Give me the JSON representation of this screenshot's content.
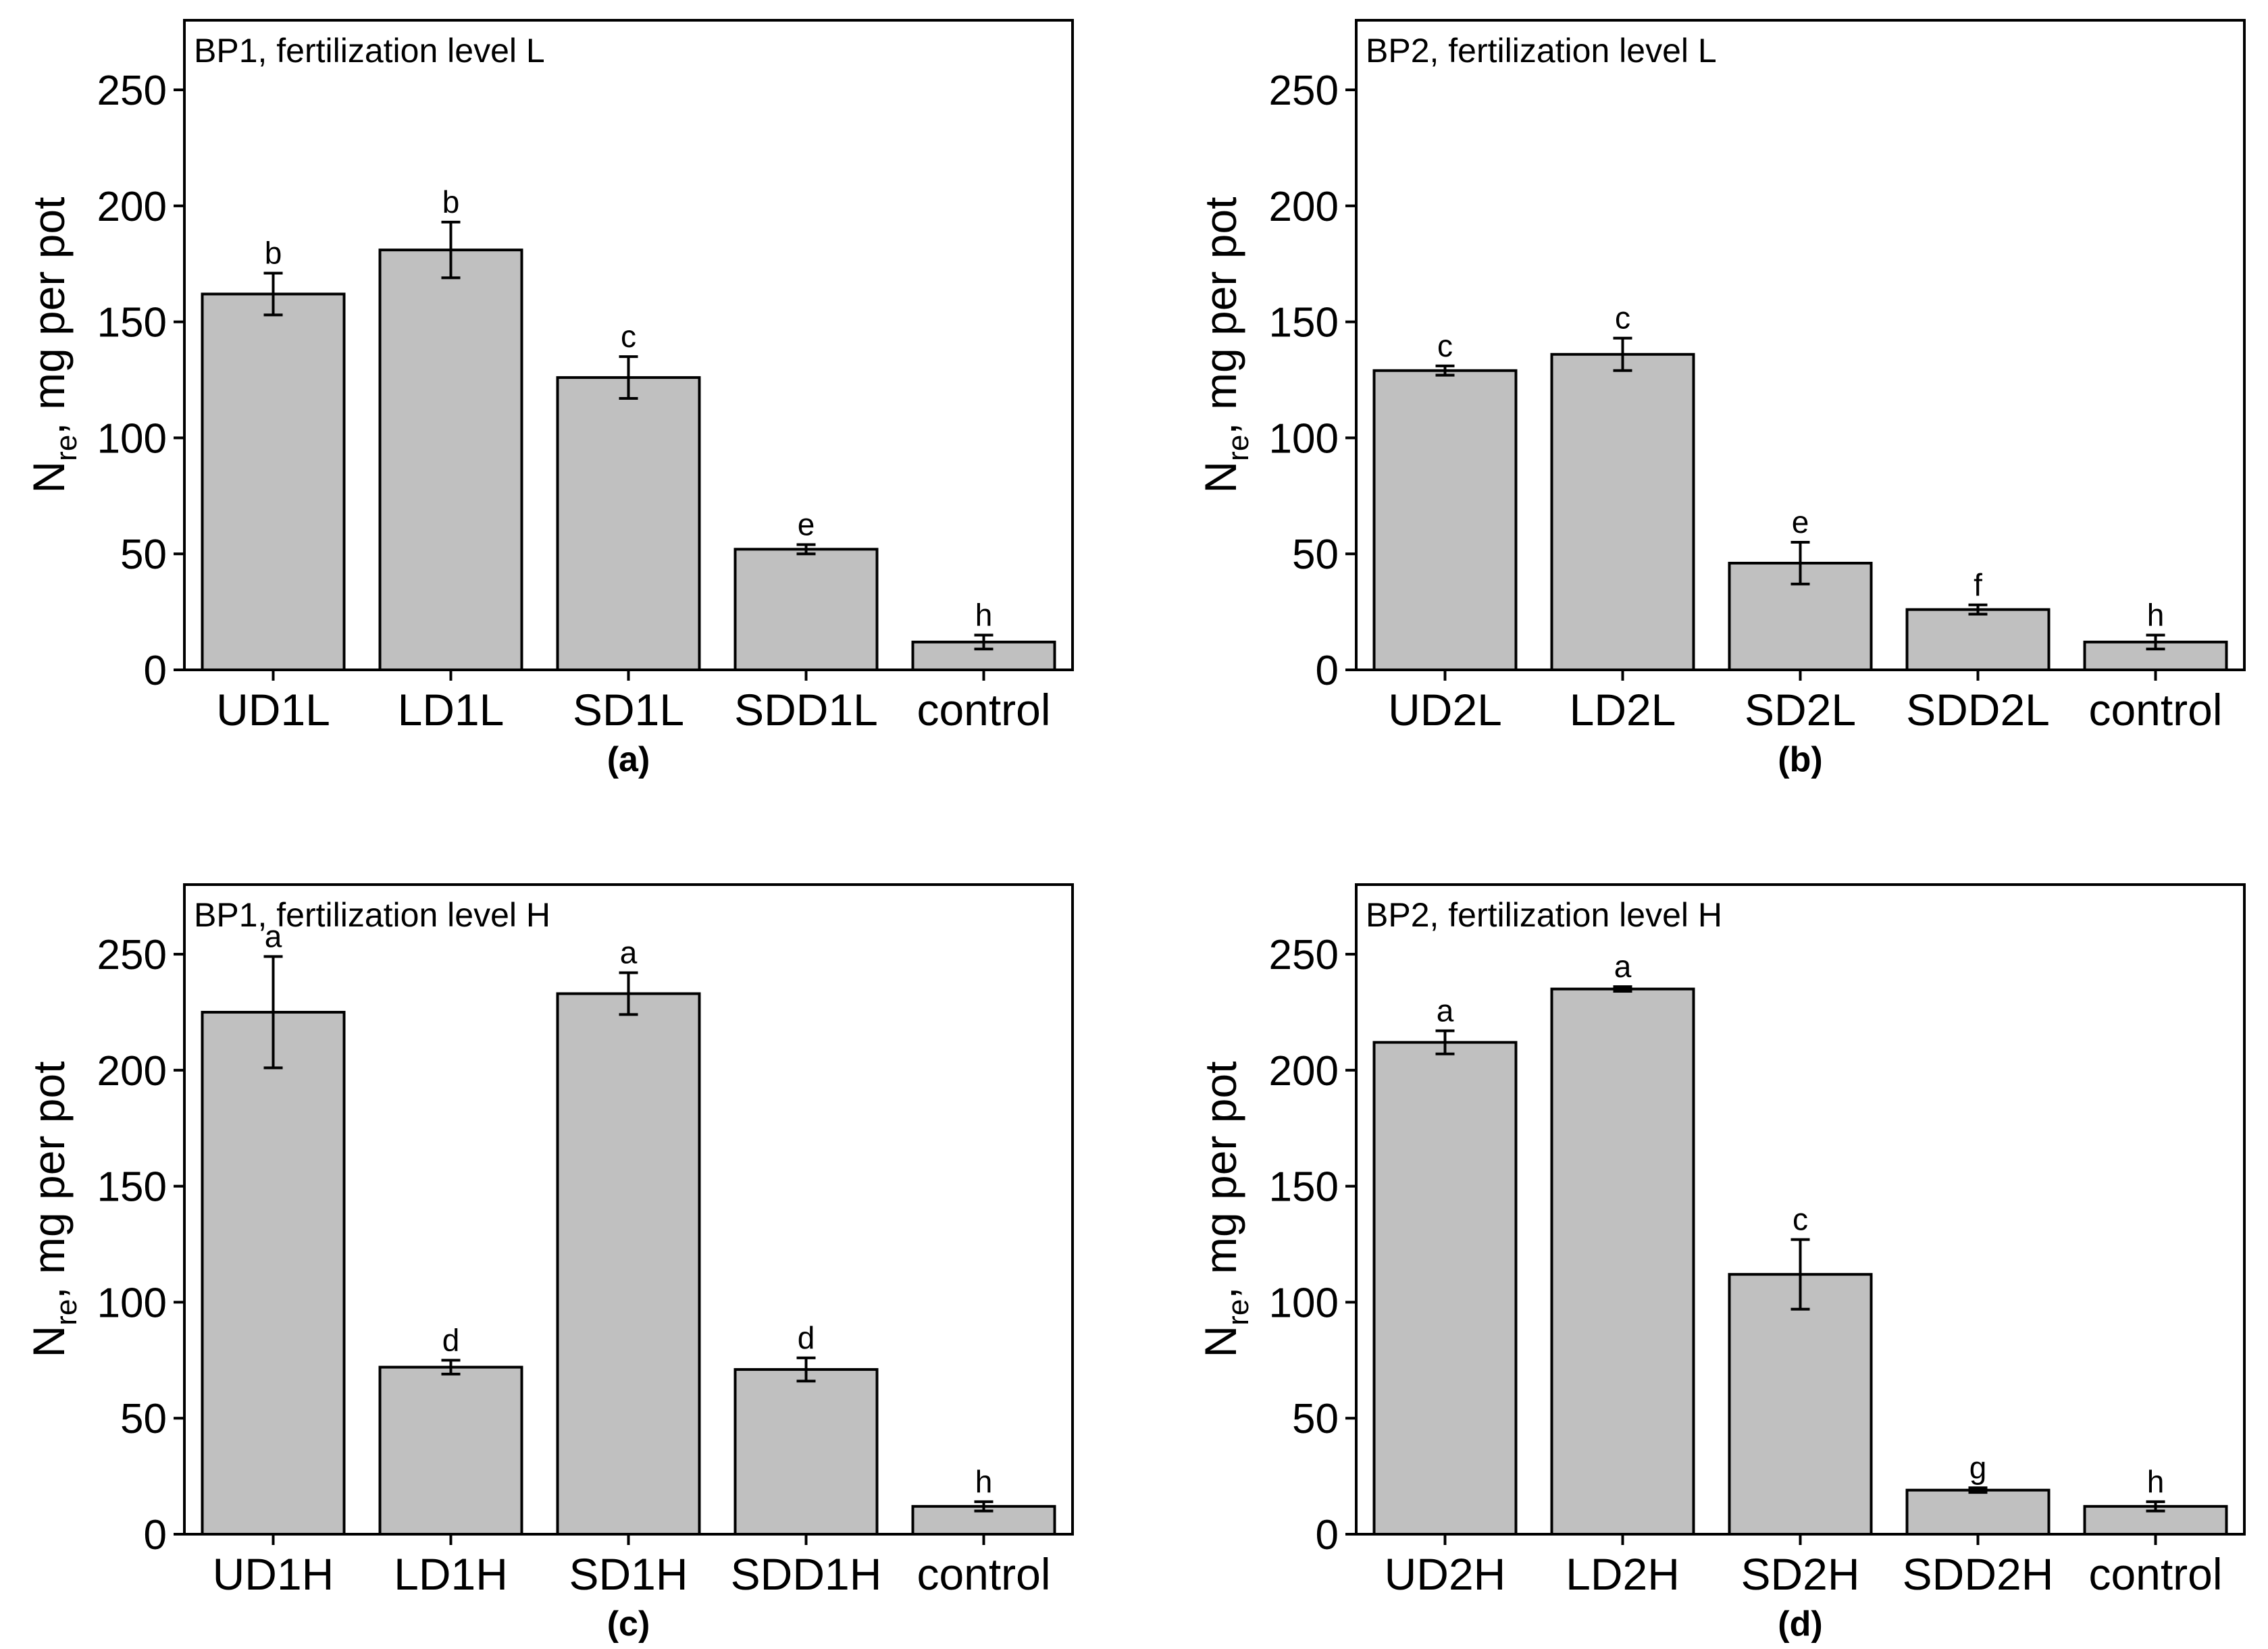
{
  "chart_data": [
    {
      "type": "bar",
      "panel_label": "(a)",
      "title": "BP1, fertilization level L",
      "ylabel_main": "N",
      "ylabel_sub": "re",
      "ylabel_rest": ", mg per pot",
      "xlabel": "",
      "ylim": [
        0,
        280
      ],
      "yticks": [
        "0",
        "50",
        "100",
        "150",
        "200",
        "250"
      ],
      "categories": [
        "UD1L",
        "LD1L",
        "SD1L",
        "SDD1L",
        "control"
      ],
      "values": [
        162,
        181,
        126,
        52,
        12
      ],
      "errors": [
        9,
        12,
        9,
        2,
        3
      ],
      "letters": [
        "b",
        "b",
        "c",
        "e",
        "h"
      ]
    },
    {
      "type": "bar",
      "panel_label": "(b)",
      "title": "BP2, fertilization level L",
      "ylabel_main": "N",
      "ylabel_sub": "re",
      "ylabel_rest": ", mg per pot",
      "xlabel": "",
      "ylim": [
        0,
        280
      ],
      "yticks": [
        "0",
        "50",
        "100",
        "150",
        "200",
        "250"
      ],
      "categories": [
        "UD2L",
        "LD2L",
        "SD2L",
        "SDD2L",
        "control"
      ],
      "values": [
        129,
        136,
        46,
        26,
        12
      ],
      "errors": [
        2,
        7,
        9,
        2,
        3
      ],
      "letters": [
        "c",
        "c",
        "e",
        "f",
        "h"
      ]
    },
    {
      "type": "bar",
      "panel_label": "(c)",
      "title": "BP1, fertilization level H",
      "ylabel_main": "N",
      "ylabel_sub": "re",
      "ylabel_rest": ", mg per pot",
      "xlabel": "",
      "ylim": [
        0,
        280
      ],
      "yticks": [
        "0",
        "50",
        "100",
        "150",
        "200",
        "250"
      ],
      "categories": [
        "UD1H",
        "LD1H",
        "SD1H",
        "SDD1H",
        "control"
      ],
      "values": [
        225,
        72,
        233,
        71,
        12
      ],
      "errors": [
        24,
        3,
        9,
        5,
        2
      ],
      "letters": [
        "a",
        "d",
        "a",
        "d",
        "h"
      ]
    },
    {
      "type": "bar",
      "panel_label": "(d)",
      "title": "BP2, fertilization level H",
      "ylabel_main": "N",
      "ylabel_sub": "re",
      "ylabel_rest": ", mg per pot",
      "xlabel": "",
      "ylim": [
        0,
        280
      ],
      "yticks": [
        "0",
        "50",
        "100",
        "150",
        "200",
        "250"
      ],
      "categories": [
        "UD2H",
        "LD2H",
        "SD2H",
        "SDD2H",
        "control"
      ],
      "values": [
        212,
        235,
        112,
        19,
        12
      ],
      "errors": [
        5,
        1,
        15,
        1,
        2
      ],
      "letters": [
        "a",
        "a",
        "c",
        "g",
        "h"
      ]
    }
  ]
}
